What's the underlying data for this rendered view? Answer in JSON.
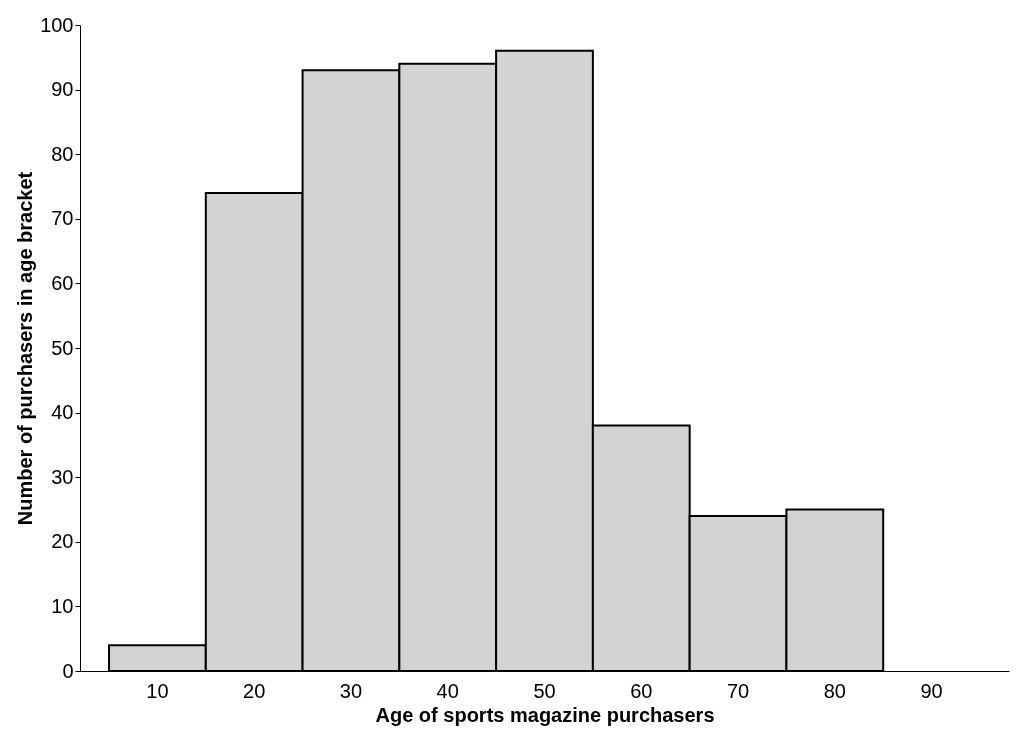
{
  "chart_data": {
    "type": "bar",
    "xlabel": "Age of sports magazine purchasers",
    "ylabel": "Number of purchasers in age bracket",
    "categories": [
      "10",
      "20",
      "30",
      "40",
      "50",
      "60",
      "70",
      "80",
      "90"
    ],
    "values": [
      4,
      74,
      93,
      94,
      96,
      38,
      24,
      25,
      null
    ],
    "color": "#d3d3d3",
    "ylim": [
      0,
      100
    ],
    "yticks": [
      0,
      10,
      20,
      30,
      40,
      50,
      60,
      70,
      80,
      90,
      100
    ],
    "grid": false
  }
}
